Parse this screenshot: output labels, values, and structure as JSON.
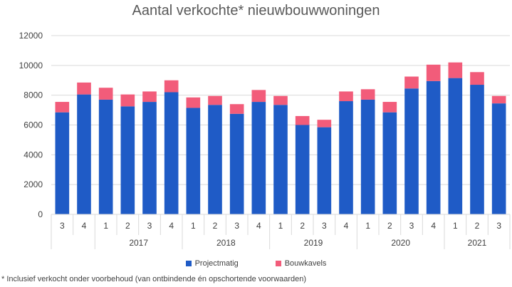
{
  "chart_data": {
    "type": "bar",
    "stacked": true,
    "title": "Aantal verkochte* nieuwbouwwoningen",
    "categories": [
      "3",
      "4",
      "1",
      "2",
      "3",
      "4",
      "1",
      "2",
      "3",
      "4",
      "1",
      "2",
      "3",
      "4",
      "1",
      "2",
      "3",
      "4",
      "1",
      "2",
      "3"
    ],
    "year_groups": [
      {
        "label": "",
        "span": 2
      },
      {
        "label": "2017",
        "span": 4
      },
      {
        "label": "2018",
        "span": 4
      },
      {
        "label": "2019",
        "span": 4
      },
      {
        "label": "2020",
        "span": 4
      },
      {
        "label": "2021",
        "span": 3
      }
    ],
    "series": [
      {
        "name": "Projectmatig",
        "color": "#1F5BC6",
        "values": [
          6850,
          8050,
          7700,
          7250,
          7550,
          8200,
          7150,
          7350,
          6750,
          7550,
          7350,
          6000,
          5850,
          7600,
          7700,
          6850,
          8450,
          8950,
          9150,
          8700,
          7450
        ]
      },
      {
        "name": "Bouwkavels",
        "color": "#F25C7A",
        "values": [
          700,
          800,
          800,
          800,
          700,
          800,
          700,
          600,
          650,
          800,
          600,
          600,
          500,
          650,
          700,
          700,
          800,
          1100,
          1050,
          850,
          500
        ]
      }
    ],
    "ylim": [
      0,
      12000
    ],
    "yticks": [
      0,
      2000,
      4000,
      6000,
      8000,
      10000,
      12000
    ],
    "grid": true,
    "legend_position": "bottom"
  },
  "footnote": "* Inclusief verkocht onder voorbehoud (van ontbindende én opschortende voorwaarden)"
}
